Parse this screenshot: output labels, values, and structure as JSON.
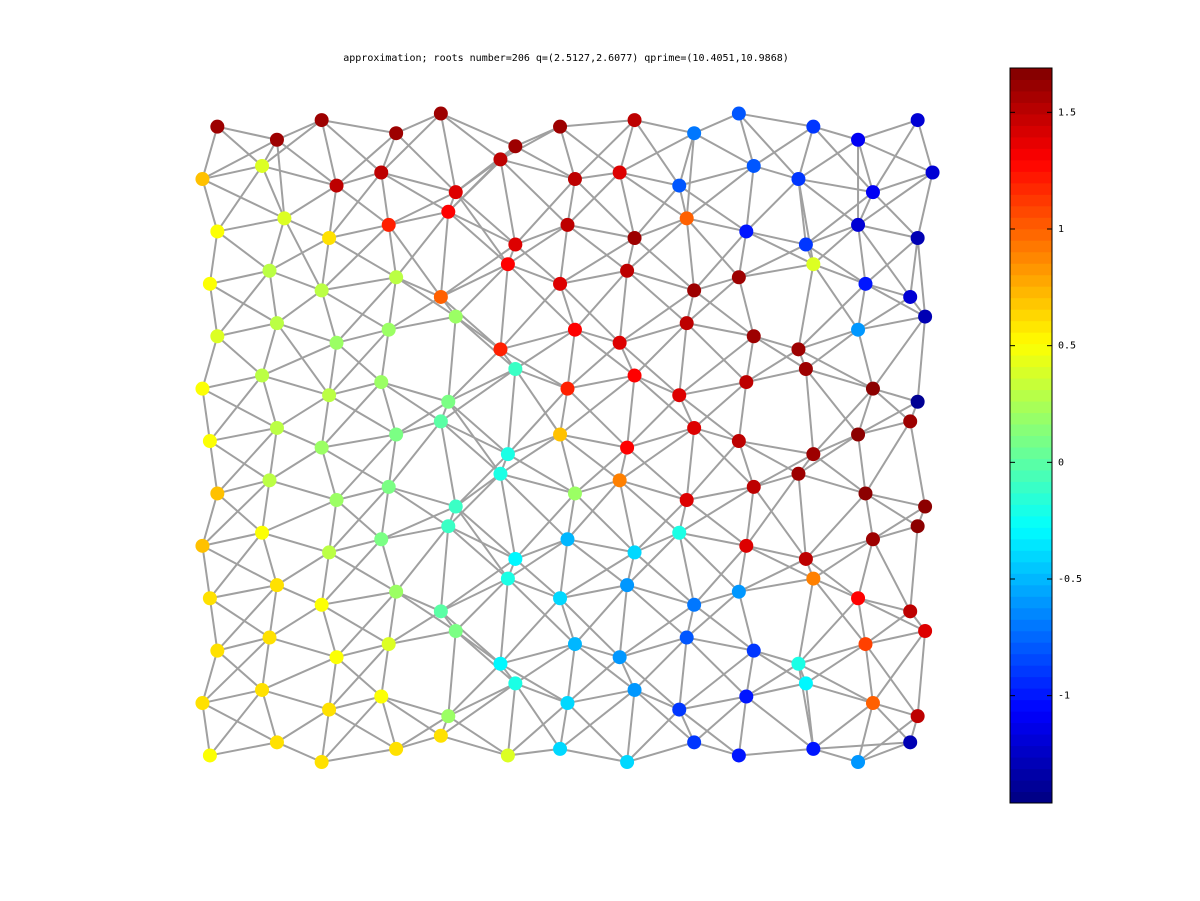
{
  "chart_data": {
    "type": "network",
    "title": "approximation; roots number=206 q=(2.5127,2.6077) qprime=(10.4051,10.9868)",
    "colormap": "jet",
    "edge_color": "#a0a0a0",
    "xlim": [
      0,
      100
    ],
    "ylim": [
      0,
      100
    ],
    "clim": [
      -1.46,
      1.69
    ],
    "cticks": [
      -1,
      -0.5,
      0,
      0.5,
      1,
      1.5
    ],
    "x": [
      3,
      11,
      17,
      27,
      33,
      43,
      49,
      59,
      67,
      73,
      83,
      89,
      97,
      1,
      9,
      19,
      25,
      35,
      41,
      51,
      57,
      65,
      75,
      81,
      91,
      99,
      3,
      12,
      18,
      26,
      34,
      43,
      50,
      59,
      66,
      74,
      82,
      89,
      97,
      2,
      10,
      17,
      27,
      33,
      42,
      49,
      58,
      67,
      73,
      83,
      90,
      96,
      3,
      11,
      19,
      26,
      35,
      41,
      51,
      57,
      66,
      75,
      81,
      89,
      98,
      1,
      9,
      18,
      25,
      34,
      43,
      50,
      59,
      65,
      74,
      82,
      91,
      97,
      2,
      11,
      17,
      27,
      33,
      42,
      49,
      58,
      67,
      73,
      83,
      89,
      96,
      3,
      10,
      19,
      26,
      35,
      41,
      51,
      57,
      66,
      75,
      81,
      90,
      98,
      1,
      9,
      18,
      25,
      34,
      43,
      50,
      59,
      65,
      74,
      82,
      91,
      97,
      2,
      11,
      17,
      27,
      33,
      42,
      49,
      58,
      67,
      73,
      83,
      89,
      96,
      3,
      10,
      19,
      26,
      35,
      41,
      51,
      57,
      66,
      75,
      81,
      90,
      98,
      1,
      9,
      18,
      25,
      34,
      43,
      50,
      59,
      65,
      74,
      82,
      91,
      97,
      2,
      11,
      17,
      27,
      33,
      42,
      49,
      58,
      67,
      73,
      83,
      89,
      96
    ],
    "y": [
      97,
      95,
      98,
      96,
      99,
      94,
      97,
      98,
      96,
      99,
      97,
      95,
      98,
      89,
      91,
      88,
      90,
      87,
      92,
      89,
      90,
      88,
      91,
      89,
      87,
      90,
      81,
      83,
      80,
      82,
      84,
      79,
      82,
      80,
      83,
      81,
      79,
      82,
      80,
      73,
      75,
      72,
      74,
      71,
      76,
      73,
      75,
      72,
      74,
      76,
      73,
      71,
      65,
      67,
      64,
      66,
      68,
      63,
      66,
      64,
      67,
      65,
      63,
      66,
      68,
      57,
      59,
      56,
      58,
      55,
      60,
      57,
      59,
      56,
      58,
      60,
      57,
      55,
      49,
      51,
      48,
      50,
      52,
      47,
      50,
      48,
      51,
      49,
      47,
      50,
      52,
      41,
      43,
      40,
      42,
      39,
      44,
      41,
      43,
      40,
      42,
      44,
      41,
      39,
      33,
      35,
      32,
      34,
      36,
      31,
      34,
      32,
      35,
      33,
      31,
      34,
      36,
      25,
      27,
      24,
      26,
      23,
      28,
      25,
      27,
      24,
      26,
      28,
      25,
      23,
      17,
      19,
      16,
      18,
      20,
      15,
      18,
      16,
      19,
      17,
      15,
      18,
      20,
      9,
      11,
      8,
      10,
      7,
      12,
      9,
      11,
      8,
      10,
      12,
      9,
      7,
      1,
      3,
      0,
      2,
      4,
      1,
      2,
      0,
      3,
      1,
      2,
      0,
      3
    ],
    "values": [
      1.6,
      1.6,
      1.6,
      1.6,
      1.6,
      1.6,
      1.6,
      1.5,
      -0.7,
      -0.8,
      -0.9,
      -1.1,
      -1.2,
      0.7,
      0.4,
      1.5,
      1.5,
      1.4,
      1.5,
      1.5,
      1.4,
      -0.8,
      -0.8,
      -0.9,
      -1.1,
      -1.2,
      0.5,
      0.4,
      0.6,
      1.2,
      1.3,
      1.4,
      1.5,
      1.6,
      1.0,
      -1.0,
      -0.9,
      -1.2,
      -1.3,
      0.5,
      0.3,
      0.3,
      0.3,
      1.0,
      1.3,
      1.4,
      1.5,
      1.6,
      1.6,
      0.4,
      -1.0,
      -1.2,
      0.4,
      0.3,
      0.2,
      0.2,
      0.2,
      1.2,
      1.3,
      1.4,
      1.5,
      1.6,
      1.6,
      -0.6,
      -1.3,
      0.5,
      0.3,
      0.3,
      0.2,
      0.1,
      -0.1,
      1.2,
      1.3,
      1.4,
      1.5,
      1.6,
      1.65,
      -1.4,
      0.5,
      0.3,
      0.2,
      0.1,
      0.0,
      -0.2,
      0.7,
      1.3,
      1.4,
      1.5,
      1.6,
      1.65,
      1.6,
      0.7,
      0.3,
      0.2,
      0.1,
      -0.1,
      -0.2,
      0.2,
      0.9,
      1.4,
      1.5,
      1.6,
      1.65,
      1.65,
      0.7,
      0.5,
      0.3,
      0.1,
      -0.1,
      -0.3,
      -0.5,
      -0.4,
      -0.2,
      1.4,
      1.5,
      1.6,
      1.65,
      0.6,
      0.6,
      0.5,
      0.2,
      0.0,
      -0.2,
      -0.4,
      -0.6,
      -0.7,
      -0.6,
      0.9,
      1.3,
      1.5,
      0.6,
      0.6,
      0.5,
      0.4,
      0.1,
      -0.3,
      -0.5,
      -0.6,
      -0.8,
      -0.9,
      -0.2,
      1.1,
      1.4,
      0.6,
      0.6,
      0.6,
      0.5,
      0.2,
      -0.2,
      -0.4,
      -0.6,
      -0.9,
      -1.0,
      -0.3,
      1.0,
      1.5,
      0.5,
      0.6,
      0.6,
      0.6,
      0.6,
      0.4,
      -0.4,
      -0.4,
      -0.9,
      -1.0,
      -1.0,
      -0.6,
      -1.3
    ]
  }
}
